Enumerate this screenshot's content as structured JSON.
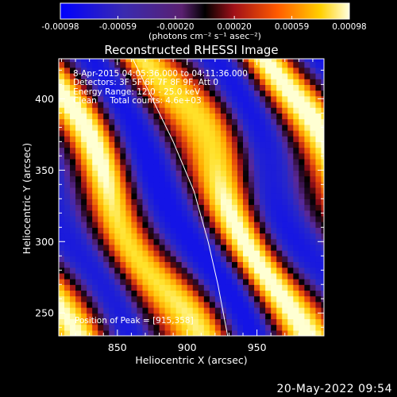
{
  "chart_data": {
    "type": "heatmap",
    "title": "Reconstructed RHESSI Image",
    "xlabel": "Heliocentric X (arcsec)",
    "ylabel": "Heliocentric Y (arcsec)",
    "xlim": [
      808,
      998
    ],
    "ylim": [
      234,
      428
    ],
    "x_ticks": [
      850,
      900,
      950
    ],
    "y_ticks": [
      250,
      300,
      350,
      400
    ],
    "colorbar": {
      "ticks": [
        "-0.00098",
        "-0.00059",
        "-0.00020",
        "0.00020",
        "0.00059",
        "0.00098"
      ],
      "tick_values": [
        -0.00098,
        -0.00059,
        -0.0002,
        0.0002,
        0.00059,
        0.00098
      ],
      "unit_label": "(photons cm⁻² s⁻¹ asec⁻²)",
      "colormap": [
        "#0000ff",
        "#3030c0",
        "#7030a0",
        "#000000",
        "#c01020",
        "#ff6000",
        "#ffd000",
        "#ffffd0"
      ]
    },
    "annotations": {
      "line1": "8-Apr-2015 04:05:36.000 to 04:11:36.000",
      "line2": "Detectors: 3F 5F 6F 7F 8F 9F, Att 0",
      "line3": "Energy Range: 12.0 - 25.0 keV",
      "line4": "Clean     Total counts: 4.6e+03",
      "peak": "Position of Peak = [915,358]"
    },
    "peak_position": [
      915,
      358
    ],
    "limb_curve_points": [
      [
        861,
        428
      ],
      [
        875,
        400
      ],
      [
        890,
        370
      ],
      [
        905,
        335
      ],
      [
        915,
        300
      ],
      [
        922,
        270
      ],
      [
        929,
        234
      ]
    ]
  },
  "footer": {
    "date": "20-May-2022 09:54"
  }
}
